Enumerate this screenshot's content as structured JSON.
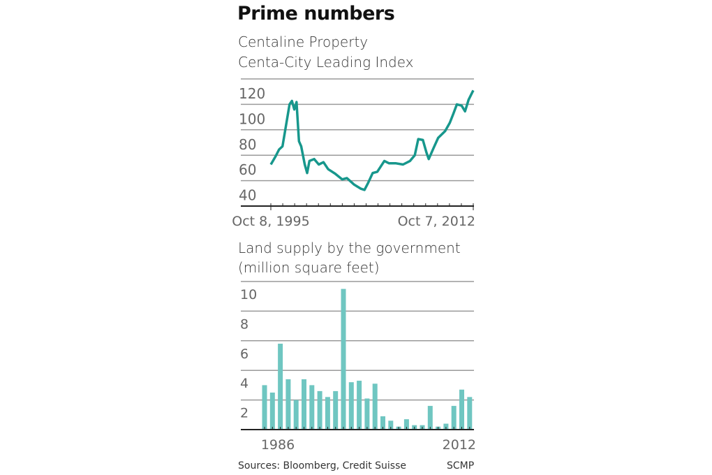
{
  "title": "Prime numbers",
  "colors": {
    "line": "#17978c",
    "bar": "#6fc6c1",
    "grid": "#9a9a9a",
    "axis": "#222222",
    "text": "#666666"
  },
  "sources": "Sources: Bloomberg, Credit Suisse",
  "credit": "SCMP",
  "chart_data": [
    {
      "type": "line",
      "title": "Centaline Property",
      "subtitle": "Centa-City Leading Index",
      "ylim": [
        20,
        120
      ],
      "yticks": [
        120,
        100,
        80,
        60,
        40
      ],
      "ytick_labels": [
        "120",
        "100",
        "80",
        "60",
        "40"
      ],
      "xlim": [
        1995.77,
        2012.77
      ],
      "xtick_labels": [
        "Oct 8, 1995",
        "Oct 7, 2012"
      ],
      "grid": true,
      "x": [
        1995.77,
        1996.16,
        1996.46,
        1996.75,
        1997.05,
        1997.34,
        1997.54,
        1997.74,
        1997.93,
        1998.13,
        1998.32,
        1998.62,
        1998.82,
        1999.01,
        1999.41,
        1999.8,
        2000.19,
        2000.58,
        2001.17,
        2001.76,
        2002.16,
        2002.75,
        2003.34,
        2003.63,
        2003.93,
        2004.32,
        2004.71,
        2005.3,
        2005.7,
        2006.28,
        2006.87,
        2007.46,
        2007.86,
        2008.15,
        2008.54,
        2008.84,
        2009.03,
        2009.43,
        2009.82,
        2010.41,
        2010.8,
        2011.1,
        2011.39,
        2011.79,
        2012.08,
        2012.38,
        2012.77
      ],
      "y": [
        52.7,
        59,
        64.5,
        67,
        83.6,
        100,
        102.7,
        96,
        101.8,
        71,
        67,
        52.7,
        46,
        55.5,
        57,
        52.7,
        54.5,
        49,
        45.5,
        41,
        42,
        37,
        33.6,
        32.7,
        38,
        46,
        47,
        55.5,
        53.6,
        53.6,
        52.7,
        55.5,
        60,
        72.7,
        72,
        62,
        57,
        65.5,
        73.6,
        79,
        85.5,
        92.7,
        100,
        99,
        94.5,
        103.6,
        111
      ]
    },
    {
      "type": "bar",
      "title": "Land supply by the government",
      "subtitle": "(million square feet)",
      "ylim": [
        0,
        10
      ],
      "yticks": [
        10,
        8,
        6,
        4,
        2
      ],
      "ytick_labels": [
        "10",
        "8",
        "6",
        "4",
        "2"
      ],
      "xtick_labels": [
        "1986",
        "2012"
      ],
      "grid": true,
      "categories": [
        1986,
        1987,
        1988,
        1989,
        1990,
        1991,
        1992,
        1993,
        1994,
        1995,
        1996,
        1997,
        1998,
        1999,
        2000,
        2001,
        2002,
        2003,
        2004,
        2005,
        2006,
        2007,
        2008,
        2009,
        2010,
        2011,
        2012
      ],
      "values": [
        3.0,
        2.5,
        5.8,
        3.4,
        2.0,
        3.4,
        3.0,
        2.6,
        2.2,
        2.6,
        9.5,
        3.2,
        3.3,
        2.1,
        3.1,
        0.9,
        0.6,
        0.2,
        0.7,
        0.3,
        0.3,
        1.6,
        0.2,
        0.4,
        1.6,
        2.7,
        2.2
      ]
    }
  ]
}
